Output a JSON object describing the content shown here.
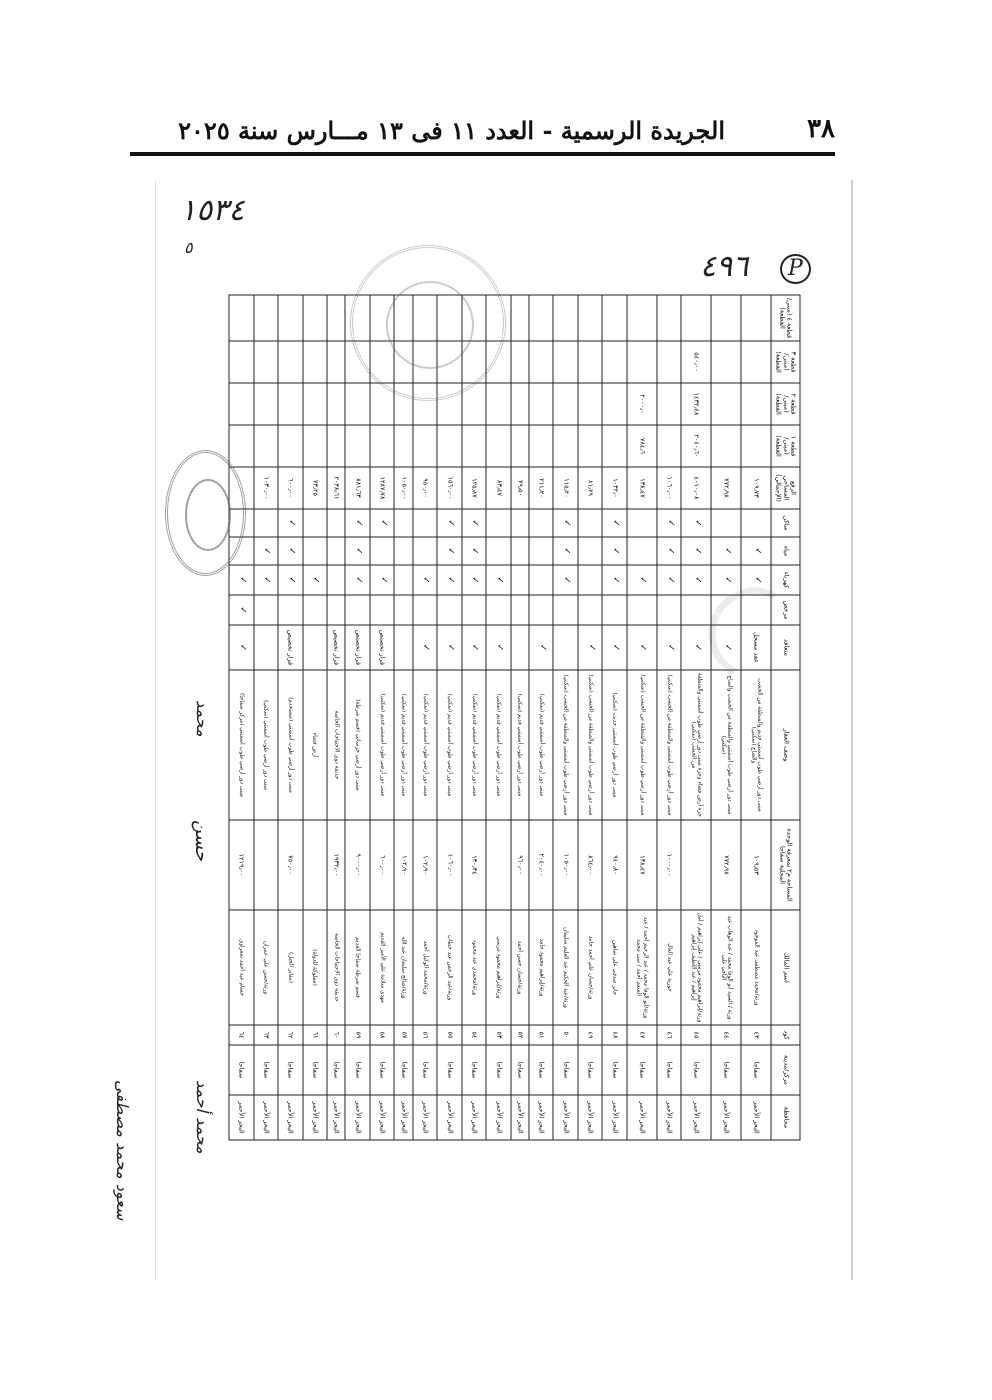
{
  "header": {
    "page_number": "٣٨",
    "title": "الجريدة الرسمية - العدد ١١ فى ١٣ مـــارس سنة ٢٠٢٥"
  },
  "handwriting": {
    "top_left_note": "١٥٣٤",
    "top_left_sub": "٥",
    "page_ref": "٤٩٦",
    "circled": "P",
    "signatures": [
      "سعود محمد مصطفى",
      "محمد أحمد",
      "حسن",
      "محمد"
    ]
  },
  "table": {
    "headers": [
      "محافظة",
      "مركز/مدينة",
      "كود",
      "اسم المالك",
      "المساحة م٢ بمعرفة الوحدة المحلية سفاجا",
      "وصف العقار",
      "متعاقد",
      "مرخص",
      "كهرباء",
      "مياه",
      "ساكن",
      "الرفع المساحي (الإجمالي)",
      "قطعة ١ (مبنى/القطعة)",
      "قطعة ٢ (مبنى/القطعة)",
      "قطعة ٣ (مبنى/القطعة)",
      "قطعة ٤ (مبنى/القطعة)"
    ],
    "rows": [
      {
        "gov": "البحر الأحمر",
        "city": "سفاجا",
        "code": "٤٣",
        "name": "ورثة/محمد مصطفى عبد الموجود",
        "area": "١٠٩٫٥٣",
        "desc": "مبنى دور أرضي طوب أسمنتي قديم والمنطقة من الخشب والصاج (سكني)",
        "contract": "عقد مسجل",
        "lic": "",
        "elec": "✓",
        "water": "✓",
        "res": "",
        "survey": "١٠٩٫٧٣",
        "p1": "",
        "p2": "",
        "p3": "",
        "p4": ""
      },
      {
        "gov": "البحر الأحمر",
        "city": "سفاجا",
        "code": "٤٤",
        "name": "ورثة / السيد أبو الوفا محمد / عبد الوهاب عبد الباقي علي",
        "area": "٧٧٢٫٩٨",
        "desc": "مبنى دور أرضي طوب أسمنتي والمنطقة من الخشب والصاج (سكني)",
        "contract": "✓",
        "lic": "",
        "elec": "✓",
        "water": "✓",
        "res": "",
        "survey": "٧٧٢٫٩٨",
        "p1": "",
        "p2": "",
        "p3": "",
        "p4": ""
      },
      {
        "gov": "البحر الأحمر",
        "city": "سفاجا",
        "code": "٤٥",
        "name": "ورثة/إبراهيم محمود مرسي / علي إبراهيم / أمل إبراهيم / عبد اللطيف إبراهيم",
        "area": "",
        "desc": "جزء أرض فضاء وجزء مبنى دور أرضي طوب أسمنتي والمنطقة من الخشب (سكني)",
        "contract": "✓",
        "lic": "",
        "elec": "✓",
        "water": "✓",
        "res": "✓",
        "survey": "٤٠١٠٫٠٨",
        "p1": "٢٠٤٠٫٦٠",
        "p2": "١٤٣٢٫٤٨",
        "p3": "٥٤٠٫٠٠",
        "p4": ""
      },
      {
        "gov": "البحر الأحمر",
        "city": "سفاجا",
        "code": "٤٦",
        "name": "حورية علي عبد العال",
        "area": "١٠٠٠٫٠٠",
        "desc": "مبنى دور أرضي طوب أسمنتي والمنطقة من الخشب (سكني)",
        "contract": "✓",
        "lic": "",
        "elec": "✓",
        "water": "✓",
        "res": "✓",
        "survey": "١٠٦٠٫٠٠",
        "p1": "",
        "p2": "",
        "p3": "",
        "p4": ""
      },
      {
        "gov": "البحر الأحمر",
        "city": "سفاجا",
        "code": "٤٧",
        "name": "ورثة/أبو الوفا محمد / عبد الرحيم أحمد / عبد المنعم أحمد / منى محمد",
        "area": "١٣٨٫٤٧",
        "desc": "مبنى دور أرضي طوب أسمنتي والمنطقة من الخشب (سكني)",
        "contract": "✓",
        "lic": "",
        "elec": "✓",
        "water": "",
        "res": "",
        "survey": "١٣٨٫٤٧",
        "p1": "٧٨٤٫٦",
        "p2": "٢٠٠٠٫٠",
        "p3": "",
        "p4": ""
      },
      {
        "gov": "البحر الأحمر",
        "city": "سفاجا",
        "code": "٤٨",
        "name": "جابر صدقي علي شاهين",
        "area": "٩٤٠٫٨٠",
        "desc": "مبنى دور أرضي طوب أسمنتي حديث (سكني)",
        "contract": "✓",
        "lic": "",
        "elec": "✓",
        "water": "✓",
        "res": "✓",
        "survey": "١٠٣٢٫٠",
        "p1": "",
        "p2": "",
        "p3": "",
        "p4": ""
      },
      {
        "gov": "البحر الأحمر",
        "city": "سفاجا",
        "code": "٤٩",
        "name": "ورثة/حسان علي أحمد حامد",
        "area": "٨٦٤٫٠٠",
        "desc": "مبنى دور أرضي طوب أسمنتي والمنطقة من الخشب (سكني)",
        "contract": "✓",
        "lic": "",
        "elec": "",
        "water": "",
        "res": "",
        "survey": "٨١٫٧٩",
        "p1": "",
        "p2": "",
        "p3": "",
        "p4": ""
      },
      {
        "gov": "البحر الأحمر",
        "city": "سفاجا",
        "code": "٥٠",
        "name": "ورثة/عبد الحكيم عبد العليم سليمان",
        "area": "١٠٥٠٫٠٠",
        "desc": "مبنى دور أرضي طوب أسمنتي والمنطقة من الخشب (سكني)",
        "contract": "",
        "lic": "",
        "elec": "✓",
        "water": "✓",
        "res": "✓",
        "survey": "١١٥٫٢٠",
        "p1": "",
        "p2": "",
        "p3": "",
        "p4": ""
      },
      {
        "gov": "البحر الأحمر",
        "city": "سفاجا",
        "code": "٥١",
        "name": "ورثة/إبراهيم محمود حامد",
        "area": "٢٠٤٠٫٠٠",
        "desc": "مبنى دور أرضي طوب أسمنتي قديم (سكني)",
        "contract": "✓",
        "lic": "",
        "elec": "",
        "water": "",
        "res": "",
        "survey": "٢١١٫٢٠",
        "p1": "",
        "p2": "",
        "p3": "",
        "p4": ""
      },
      {
        "gov": "البحر الأحمر",
        "city": "سفاجا",
        "code": "٥٢",
        "name": "ورثة/حسان حسن أحمد",
        "area": "٩٦٠٫٠٠",
        "desc": "مبنى دور أرضي طوب أسمنتي قديم (سكني)",
        "contract": "",
        "lic": "",
        "elec": "",
        "water": "",
        "res": "",
        "survey": "٧٩٫٥٠",
        "p1": "",
        "p2": "",
        "p3": "",
        "p4": ""
      },
      {
        "gov": "البحر الأحمر",
        "city": "سفاجا",
        "code": "٥٣",
        "name": "ورثة/إبراهيم محمود مرسي",
        "area": "",
        "desc": "مبنى دور أرضي طوب أسمنتي قديم (سكني)",
        "contract": "✓",
        "lic": "",
        "elec": "✓",
        "water": "",
        "res": "",
        "survey": "٨٣٫٤٧",
        "p1": "",
        "p2": "",
        "p3": "",
        "p4": ""
      },
      {
        "gov": "البحر الأحمر",
        "city": "سفاجا",
        "code": "٥٤",
        "name": "ورثة/محمدي عبد محمود",
        "area": "١٣٠٫٣٤",
        "desc": "مبنى دور أرضي طوب أسمنتي قديم (سكني)",
        "contract": "✓",
        "lic": "",
        "elec": "✓",
        "water": "✓",
        "res": "✓",
        "survey": "١٢٥٫٨٧",
        "p1": "",
        "p2": "",
        "p3": "",
        "p4": ""
      },
      {
        "gov": "البحر الأحمر",
        "city": "سفاجا",
        "code": "٥٥",
        "name": "ورثة/عبد الرحمن عبد خطاب",
        "area": "١٠٦٠٫٠٠",
        "desc": "مبنى دور أرضي طوب أسمنتي قديم (سكني)",
        "contract": "✓",
        "lic": "",
        "elec": "✓",
        "water": "✓",
        "res": "✓",
        "survey": "١٥٦٠٫٠٠",
        "p1": "",
        "p2": "",
        "p3": "",
        "p4": ""
      },
      {
        "gov": "البحر الأحمر",
        "city": "سفاجا",
        "code": "٥٦",
        "name": "ورثة/محمد الوكيل أحمد",
        "area": "١٠٢٫٩٠",
        "desc": "مبنى دور أرضي طوب أسمنتي قديم (سكني)",
        "contract": "✓",
        "lic": "",
        "elec": "✓",
        "water": "",
        "res": "",
        "survey": "٩٥٠٫٠٠",
        "p1": "",
        "p2": "",
        "p3": "",
        "p4": ""
      },
      {
        "gov": "البحر الأحمر",
        "city": "سفاجا",
        "code": "٥٧",
        "name": "ورثة/صالح سليمان عبد الله",
        "area": "١٠٢٫٩٠",
        "desc": "مبنى دور أرضي طوب أسمنتي قديم (سكني)",
        "contract": "",
        "lic": "",
        "elec": "",
        "water": "",
        "res": "",
        "survey": "١٠٥٠٫٠٠",
        "p1": "",
        "p2": "",
        "p3": "",
        "p4": ""
      },
      {
        "gov": "البحر الأحمر",
        "city": "سفاجا",
        "code": "٥٨",
        "name": "مهدي سلامة علي الأمير القديم",
        "area": "٦٠٠٫٠٠",
        "desc": "مبنى دور أرضي طوب أسمنتي قديم (سكني)",
        "contract": "قرار تخصيص",
        "lic": "",
        "elec": "✓",
        "water": "",
        "res": "✓",
        "survey": "١٢٨٧٫٧٨",
        "p1": "",
        "p2": "",
        "p3": "",
        "p4": ""
      },
      {
        "gov": "البحر الأحمر",
        "city": "سفاجا",
        "code": "٥٩",
        "name": "قسم شرطة سفاجا القديم",
        "area": "٩٠٠٠٫٠٠",
        "desc": "مبنى دور أرضي خرساني (قسم شرطة)",
        "contract": "قرار تخصيص",
        "lic": "",
        "elec": "✓",
        "water": "✓",
        "res": "✓",
        "survey": "٨٨١٫٦٣",
        "p1": "",
        "p2": "",
        "p3": "",
        "p4": ""
      },
      {
        "gov": "البحر الأحمر",
        "city": "سفاجا",
        "code": "٦٠",
        "name": "حديقة ذوي الاحتياجات الخاصة",
        "area": "١٩٣٢٫٠٠",
        "desc": "حديقة ذوي الاحتياجات الخاصة",
        "contract": "قرار تخصيص",
        "lic": "",
        "elec": "",
        "water": "",
        "res": "",
        "survey": "٢٠٣٨٫٦١",
        "p1": "",
        "p2": "",
        "p3": "",
        "p4": ""
      },
      {
        "gov": "البحر الأحمر",
        "city": "سفاجا",
        "code": "٦١",
        "name": "(مملوكة للدولة)",
        "area": "",
        "desc": "أرض فضاء",
        "contract": "",
        "lic": "",
        "elec": "✓",
        "water": "",
        "res": "",
        "survey": "٧٣٫٢٥",
        "p1": "",
        "p2": "",
        "p3": "",
        "p4": ""
      },
      {
        "gov": "البحر الأحمر",
        "city": "سفاجا",
        "code": "٦٢",
        "name": "(مقابر الجبل)",
        "area": "٧٥٠٫٠٠",
        "desc": "مبنى دور أرضي طوب أسمنتي (مستخدم)",
        "contract": "قرار تخصيص",
        "lic": "",
        "elec": "✓",
        "water": "✓",
        "res": "✓",
        "survey": "٦٠٠٫٠٠",
        "p1": "",
        "p2": "",
        "p3": "",
        "p4": ""
      },
      {
        "gov": "البحر الأحمر",
        "city": "سفاجا",
        "code": "٦٣",
        "name": "ورثة/حسن علي عمران",
        "area": "",
        "desc": "مبنى دور أرضي طوب أسمنتي (سكني)",
        "contract": "",
        "lic": "",
        "elec": "✓",
        "water": "✓",
        "res": "",
        "survey": "١٠٣٠٫٠٠",
        "p1": "",
        "p2": "",
        "p3": "",
        "p4": ""
      },
      {
        "gov": "البحر الأحمر",
        "city": "سفاجا",
        "code": "٦٤",
        "name": "حسام عبد أحمد شعراوي",
        "area": "١٢١٩٫٠٠",
        "desc": "مبنى دور أرضي طوب أسمنتي (مركز سفاجا)",
        "contract": "✓",
        "lic": "✓",
        "elec": "✓",
        "water": "",
        "res": "",
        "survey": "",
        "p1": "",
        "p2": "",
        "p3": "",
        "p4": ""
      }
    ]
  },
  "colors": {
    "ink": "#111111",
    "stamp": "#555555",
    "watermark": "#ececec"
  }
}
